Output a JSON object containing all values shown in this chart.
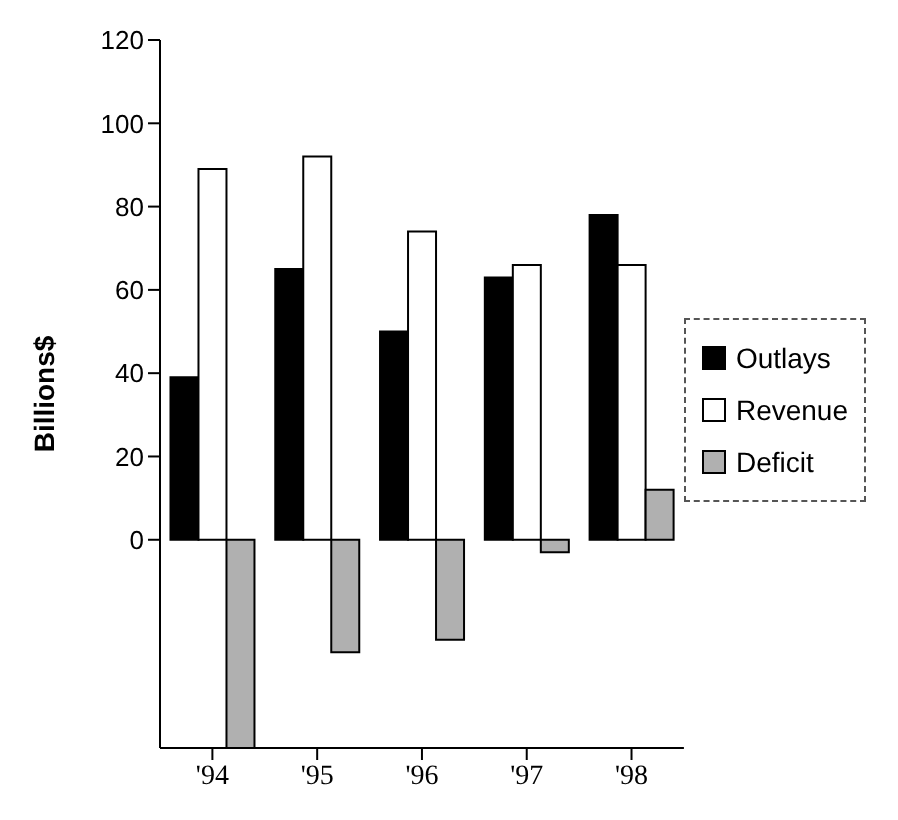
{
  "chart_data": {
    "type": "bar",
    "ylabel": "Billions$",
    "categories": [
      "'94",
      "'95",
      "'96",
      "'97",
      "'98"
    ],
    "series": [
      {
        "name": "Outlays",
        "color": "#000000",
        "values": [
          39,
          65,
          50,
          63,
          78
        ]
      },
      {
        "name": "Revenue",
        "color": "#ffffff",
        "values": [
          89,
          92,
          74,
          66,
          66
        ]
      },
      {
        "name": "Deficit",
        "color": "#b0b0b0",
        "values": [
          -50,
          -27,
          -24,
          -3,
          12
        ]
      }
    ],
    "ylim": [
      -50,
      120
    ],
    "yticks": [
      0,
      20,
      40,
      60,
      80,
      100,
      120
    ],
    "grid": false,
    "legend": "right"
  }
}
